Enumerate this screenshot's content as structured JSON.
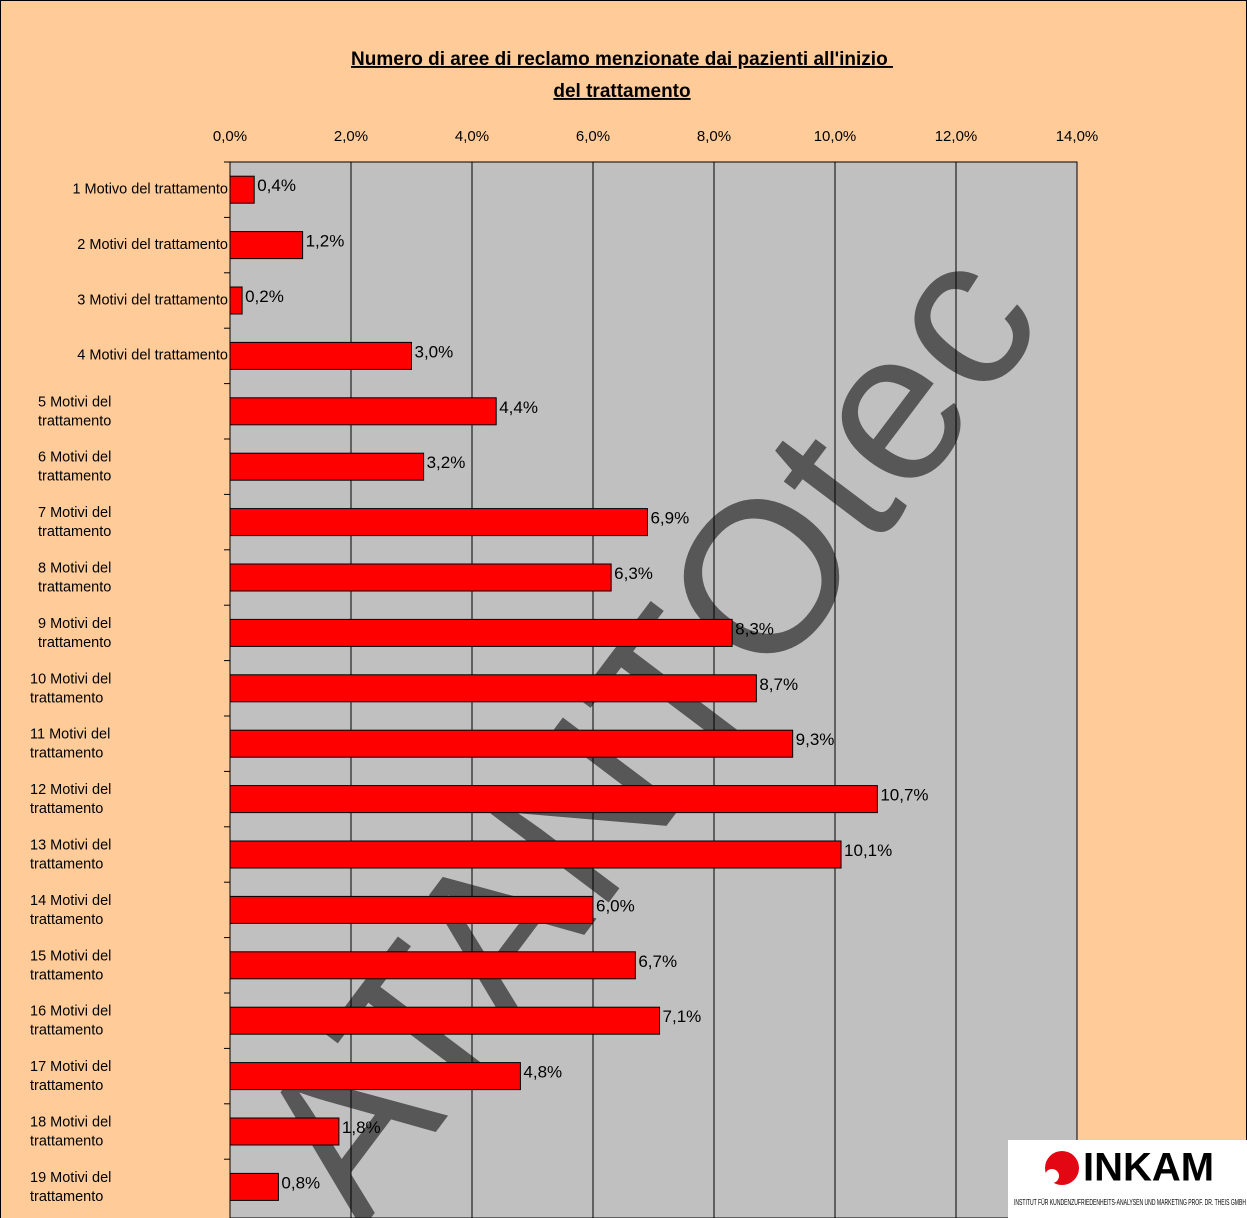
{
  "chart_data": {
    "type": "bar",
    "orientation": "horizontal",
    "title": "Numero di aree di reclamo menzionate dai pazienti all'inizio del trattamento",
    "categories": [
      "1 Motivo del trattamento",
      "2 Motivi del trattamento",
      "3 Motivi del trattamento",
      "4 Motivi del trattamento",
      "5 Motivi del trattamento",
      "6 Motivi del trattamento",
      "7 Motivi del trattamento",
      "8 Motivi del trattamento",
      "9 Motivi del trattamento",
      "10 Motivi del trattamento",
      "11 Motivi del trattamento",
      "12 Motivi del trattamento",
      "13 Motivi del trattamento",
      "14 Motivi del trattamento",
      "15 Motivi del trattamento",
      "16 Motivi del trattamento",
      "17 Motivi del trattamento",
      "18 Motivi del trattamento",
      "19 Motivi del trattamento"
    ],
    "values": [
      0.4,
      1.2,
      0.2,
      3.0,
      4.4,
      3.2,
      6.9,
      6.3,
      8.3,
      8.7,
      9.3,
      10.7,
      10.1,
      6.0,
      6.7,
      7.1,
      4.8,
      1.8,
      0.8
    ],
    "value_labels": [
      "0,4%",
      "1,2%",
      "0,2%",
      "3,0%",
      "4,4%",
      "3,2%",
      "6,9%",
      "6,3%",
      "8,3%",
      "8,7%",
      "9,3%",
      "10,7%",
      "10,1%",
      "6,0%",
      "6,7%",
      "7,1%",
      "4,8%",
      "1,8%",
      "0,8%"
    ],
    "color": "#ff0000",
    "xlim": [
      0,
      14
    ],
    "xticks": [
      {
        "value": 0,
        "label": "0,0%"
      },
      {
        "value": 2,
        "label": "2,0%"
      },
      {
        "value": 4,
        "label": "4,0%"
      },
      {
        "value": 6,
        "label": "6,0%"
      },
      {
        "value": 8,
        "label": "8,0%"
      },
      {
        "value": 10,
        "label": "10,0%"
      },
      {
        "value": 12,
        "label": "12,0%"
      },
      {
        "value": 14,
        "label": "14,0%"
      }
    ],
    "grid": true,
    "watermark": "ATANTOtec",
    "logo": {
      "name": "INKAM",
      "caption": "INSTITUT FÜR KUNDENZUFRIEDENHEITS-ANALYSEN UND MARKETING PROF. DR. THEIS GMBH"
    }
  }
}
